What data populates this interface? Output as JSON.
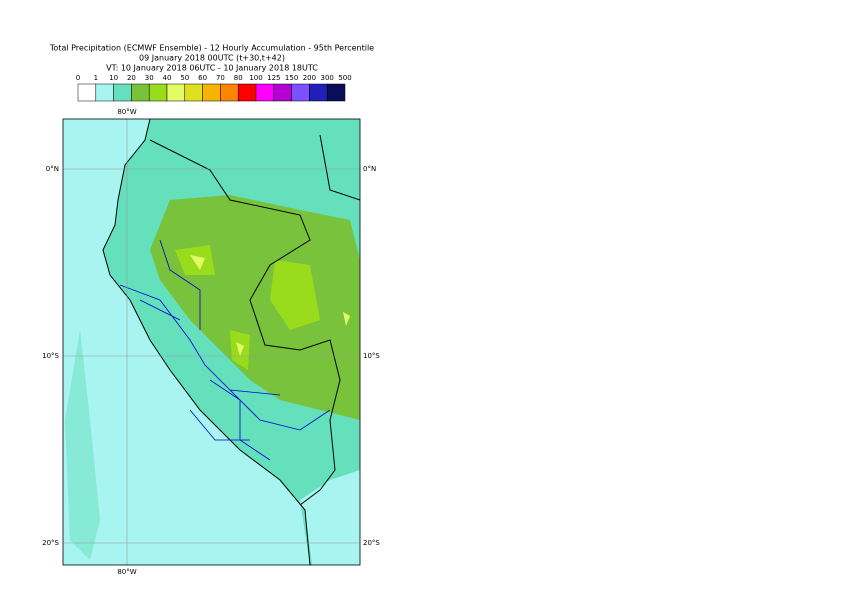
{
  "header": {
    "title": [
      "Total Precipitation (ECMWF Ensemble) - 12 Hourly Accumulation - 95th Percentile",
      "09 January 2018 00UTC (t+30,t+42)",
      "VT: 10 January 2018 06UTC - 10 January 2018 18UTC"
    ]
  },
  "legend": {
    "labels": [
      "0",
      "1",
      "10",
      "20",
      "30",
      "40",
      "50",
      "60",
      "70",
      "80",
      "100",
      "125",
      "150",
      "200",
      "300",
      "500"
    ],
    "colors": [
      "#ffffff",
      "#a8f4f0",
      "#64e0bc",
      "#78c23c",
      "#98dc1c",
      "#e4fc64",
      "#e0e020",
      "#f4b400",
      "#ff8400",
      "#ff0000",
      "#ff00ff",
      "#b400d4",
      "#7c50ff",
      "#2020b8",
      "#0c0c58"
    ]
  },
  "map": {
    "lon_labels": [
      "80°W"
    ],
    "lat_labels": [
      "0°N",
      "10°S",
      "20°S"
    ]
  }
}
